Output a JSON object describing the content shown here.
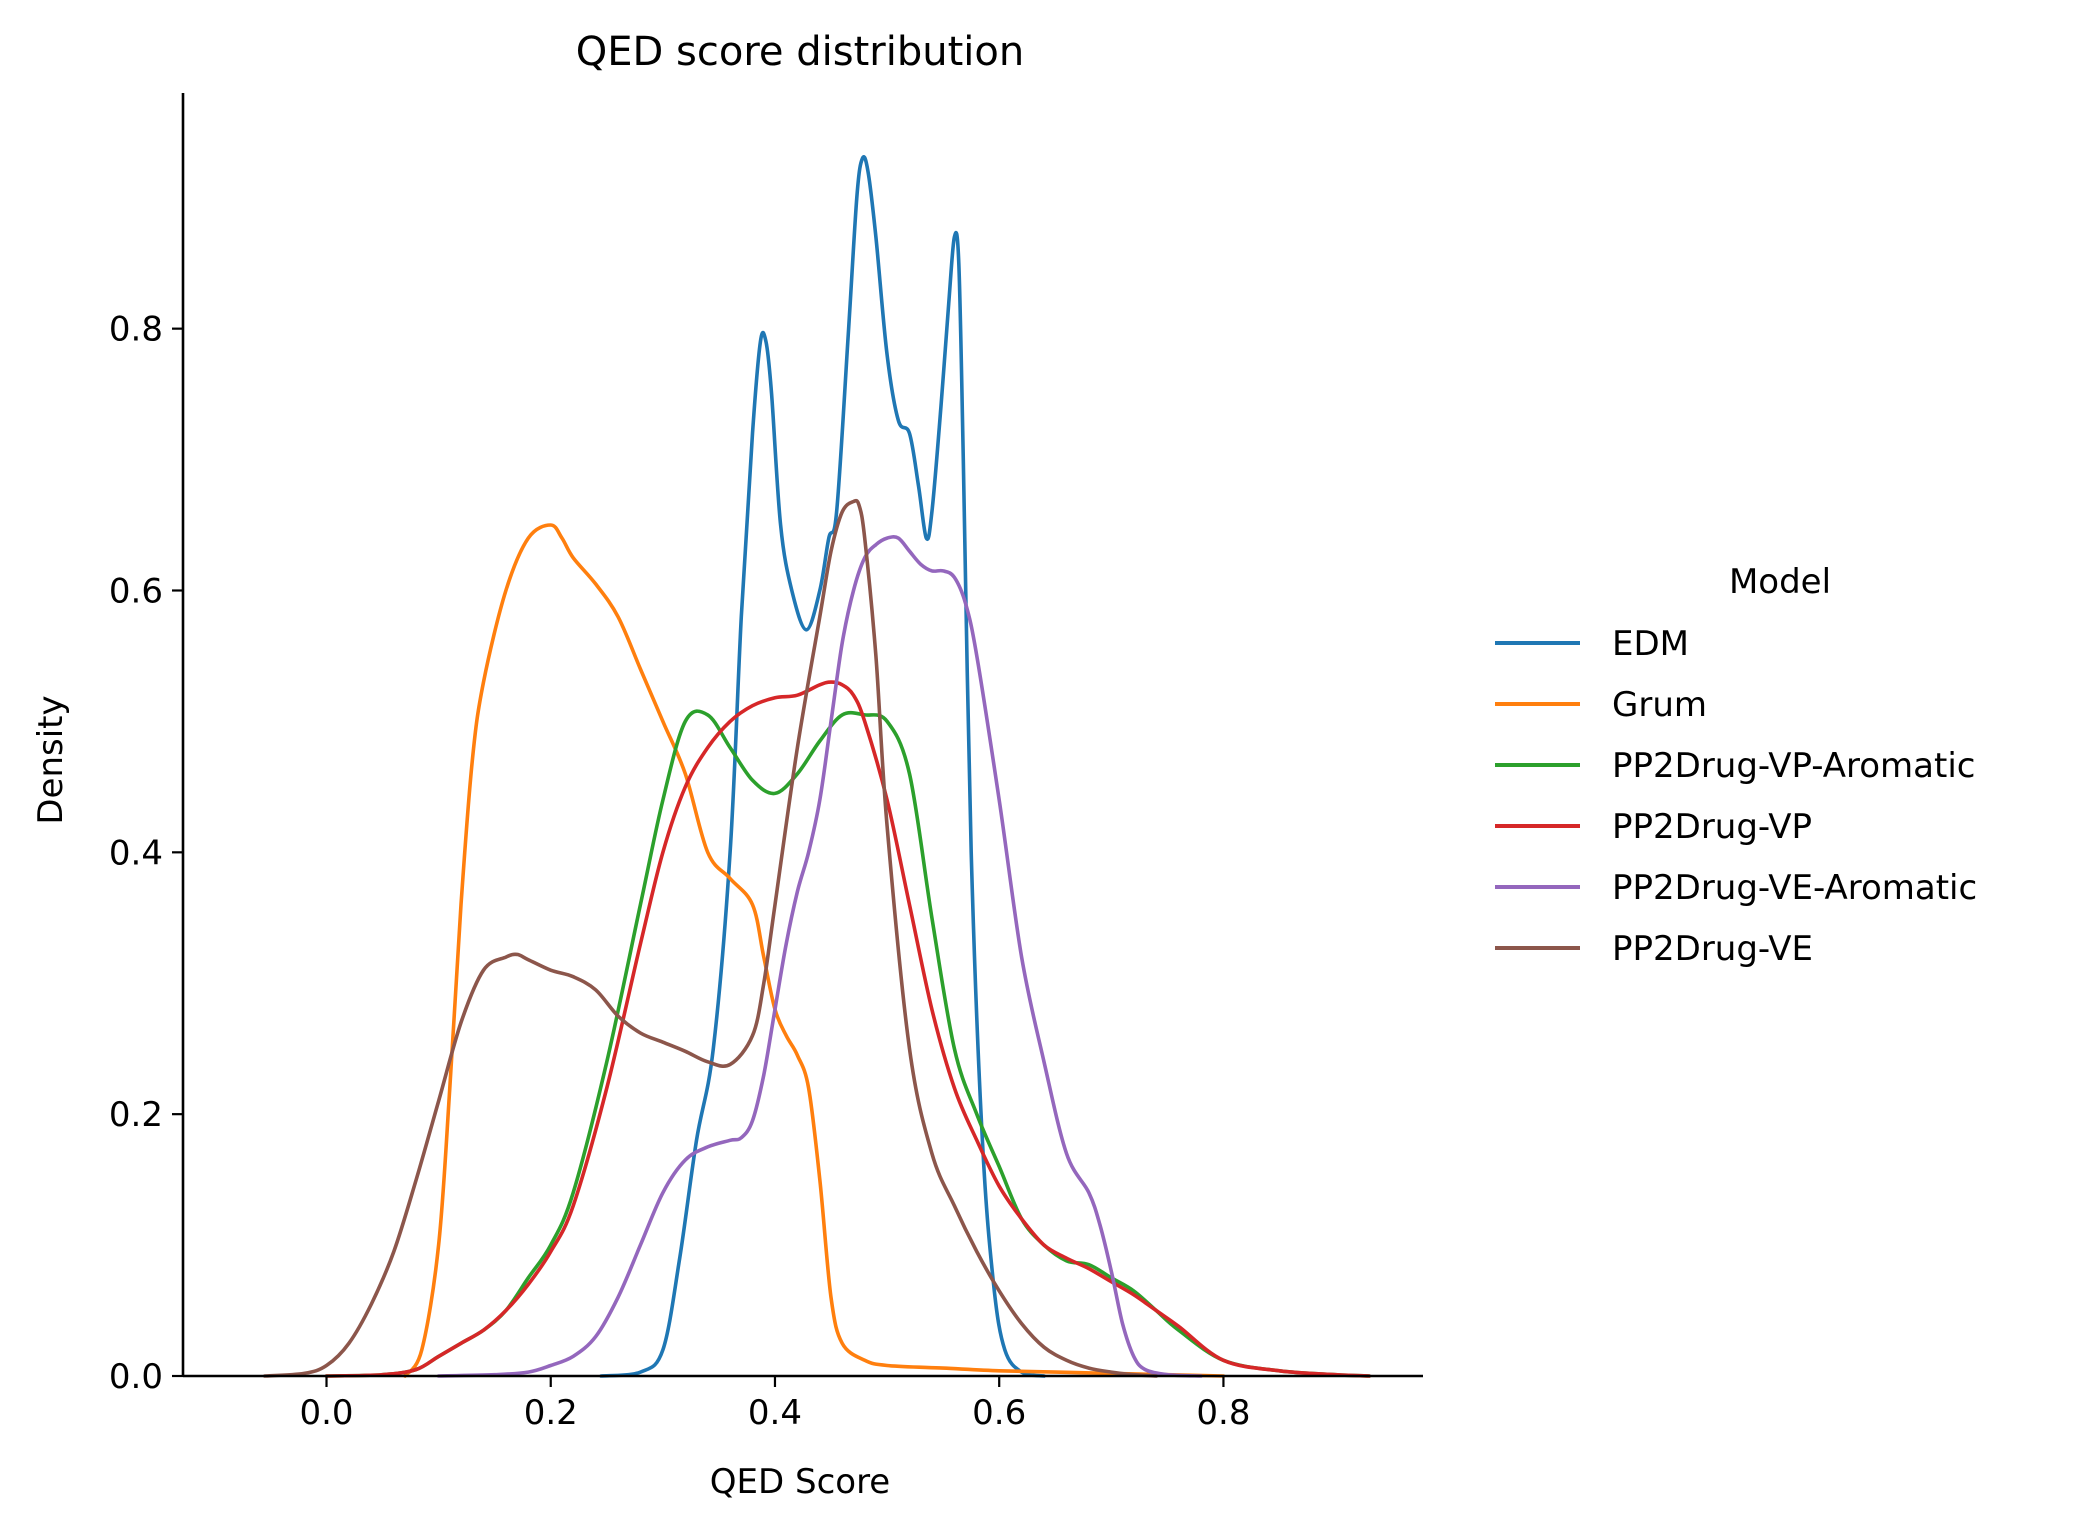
{
  "chart_data": {
    "type": "line",
    "title": "QED score distribution",
    "xlabel": "QED Score",
    "ylabel": "Density",
    "xlim": [
      -0.128,
      0.978
    ],
    "ylim": [
      0,
      0.98
    ],
    "xticks": [
      0.0,
      0.2,
      0.4,
      0.6,
      0.8
    ],
    "xtick_labels": [
      "0.0",
      "0.2",
      "0.4",
      "0.6",
      "0.8"
    ],
    "yticks": [
      0.0,
      0.2,
      0.4,
      0.6,
      0.8
    ],
    "ytick_labels": [
      "0.0",
      "0.2",
      "0.4",
      "0.6",
      "0.8"
    ],
    "grid": false,
    "legend": {
      "title": "Model",
      "placement": "outside-right"
    },
    "series": [
      {
        "name": "EDM",
        "color": "#1f77b4",
        "x": [
          0.245,
          0.28,
          0.3,
          0.315,
          0.33,
          0.345,
          0.36,
          0.37,
          0.38,
          0.387,
          0.392,
          0.397,
          0.405,
          0.415,
          0.428,
          0.44,
          0.448,
          0.455,
          0.465,
          0.473,
          0.478,
          0.483,
          0.49,
          0.5,
          0.51,
          0.52,
          0.528,
          0.535,
          0.54,
          0.548,
          0.555,
          0.56,
          0.564,
          0.568,
          0.575,
          0.585,
          0.595,
          0.605,
          0.62,
          0.64
        ],
        "y": [
          0.0,
          0.003,
          0.02,
          0.09,
          0.18,
          0.25,
          0.4,
          0.58,
          0.72,
          0.79,
          0.79,
          0.75,
          0.65,
          0.6,
          0.57,
          0.6,
          0.64,
          0.66,
          0.79,
          0.9,
          0.93,
          0.92,
          0.87,
          0.78,
          0.73,
          0.72,
          0.68,
          0.64,
          0.66,
          0.74,
          0.82,
          0.87,
          0.85,
          0.7,
          0.4,
          0.18,
          0.07,
          0.02,
          0.003,
          0.0
        ]
      },
      {
        "name": "Grum",
        "color": "#ff7f0e",
        "x": [
          0.07,
          0.085,
          0.1,
          0.11,
          0.12,
          0.13,
          0.14,
          0.16,
          0.18,
          0.2,
          0.21,
          0.22,
          0.24,
          0.26,
          0.28,
          0.3,
          0.32,
          0.34,
          0.36,
          0.38,
          0.39,
          0.4,
          0.41,
          0.42,
          0.43,
          0.44,
          0.45,
          0.46,
          0.48,
          0.5,
          0.55,
          0.6,
          0.65,
          0.7,
          0.75,
          0.8
        ],
        "y": [
          0.0,
          0.02,
          0.1,
          0.22,
          0.36,
          0.47,
          0.53,
          0.6,
          0.64,
          0.65,
          0.64,
          0.625,
          0.605,
          0.58,
          0.54,
          0.5,
          0.46,
          0.4,
          0.38,
          0.36,
          0.32,
          0.28,
          0.26,
          0.245,
          0.22,
          0.15,
          0.06,
          0.025,
          0.012,
          0.008,
          0.006,
          0.004,
          0.003,
          0.002,
          0.001,
          0.0
        ]
      },
      {
        "name": "PP2Drug-VP-Aromatic",
        "color": "#2ca02c",
        "x": [
          0.0,
          0.05,
          0.08,
          0.1,
          0.12,
          0.14,
          0.16,
          0.18,
          0.2,
          0.22,
          0.25,
          0.28,
          0.3,
          0.32,
          0.34,
          0.36,
          0.38,
          0.4,
          0.42,
          0.44,
          0.46,
          0.48,
          0.5,
          0.52,
          0.54,
          0.56,
          0.58,
          0.6,
          0.62,
          0.64,
          0.66,
          0.68,
          0.7,
          0.72,
          0.74,
          0.76,
          0.8,
          0.85,
          0.9,
          0.93
        ],
        "y": [
          0.0,
          0.001,
          0.005,
          0.015,
          0.025,
          0.035,
          0.05,
          0.075,
          0.1,
          0.14,
          0.24,
          0.36,
          0.44,
          0.5,
          0.505,
          0.48,
          0.455,
          0.445,
          0.46,
          0.485,
          0.505,
          0.505,
          0.5,
          0.46,
          0.35,
          0.25,
          0.2,
          0.16,
          0.12,
          0.1,
          0.088,
          0.085,
          0.075,
          0.065,
          0.05,
          0.035,
          0.012,
          0.004,
          0.001,
          0.0
        ]
      },
      {
        "name": "PP2Drug-VP",
        "color": "#d62728",
        "x": [
          0.0,
          0.05,
          0.08,
          0.1,
          0.12,
          0.14,
          0.16,
          0.18,
          0.2,
          0.22,
          0.25,
          0.28,
          0.3,
          0.32,
          0.34,
          0.36,
          0.38,
          0.4,
          0.42,
          0.44,
          0.45,
          0.46,
          0.47,
          0.48,
          0.5,
          0.52,
          0.54,
          0.56,
          0.58,
          0.6,
          0.62,
          0.64,
          0.66,
          0.68,
          0.7,
          0.72,
          0.74,
          0.76,
          0.8,
          0.85,
          0.9,
          0.93
        ],
        "y": [
          0.0,
          0.001,
          0.005,
          0.015,
          0.025,
          0.035,
          0.05,
          0.07,
          0.095,
          0.13,
          0.22,
          0.33,
          0.4,
          0.45,
          0.48,
          0.5,
          0.512,
          0.518,
          0.52,
          0.528,
          0.53,
          0.528,
          0.52,
          0.5,
          0.44,
          0.36,
          0.28,
          0.22,
          0.18,
          0.145,
          0.12,
          0.1,
          0.09,
          0.082,
          0.072,
          0.062,
          0.05,
          0.038,
          0.012,
          0.004,
          0.001,
          0.0
        ]
      },
      {
        "name": "PP2Drug-VE-Aromatic",
        "color": "#9467bd",
        "x": [
          0.1,
          0.15,
          0.18,
          0.2,
          0.22,
          0.24,
          0.26,
          0.28,
          0.3,
          0.32,
          0.34,
          0.36,
          0.37,
          0.38,
          0.39,
          0.4,
          0.41,
          0.42,
          0.43,
          0.44,
          0.45,
          0.46,
          0.47,
          0.48,
          0.49,
          0.5,
          0.51,
          0.52,
          0.53,
          0.54,
          0.55,
          0.56,
          0.57,
          0.58,
          0.6,
          0.62,
          0.64,
          0.66,
          0.68,
          0.69,
          0.7,
          0.71,
          0.72,
          0.73,
          0.75,
          0.78
        ],
        "y": [
          0.0,
          0.001,
          0.003,
          0.008,
          0.015,
          0.03,
          0.06,
          0.1,
          0.14,
          0.165,
          0.175,
          0.18,
          0.182,
          0.195,
          0.23,
          0.28,
          0.33,
          0.37,
          0.4,
          0.44,
          0.5,
          0.56,
          0.6,
          0.625,
          0.635,
          0.64,
          0.64,
          0.63,
          0.62,
          0.615,
          0.615,
          0.61,
          0.59,
          0.55,
          0.44,
          0.32,
          0.24,
          0.17,
          0.14,
          0.115,
          0.08,
          0.04,
          0.015,
          0.005,
          0.001,
          0.0
        ]
      },
      {
        "name": "PP2Drug-VE",
        "color": "#8c564b",
        "x": [
          -0.055,
          -0.02,
          0.0,
          0.02,
          0.04,
          0.06,
          0.08,
          0.1,
          0.12,
          0.14,
          0.16,
          0.17,
          0.18,
          0.2,
          0.22,
          0.24,
          0.26,
          0.28,
          0.3,
          0.32,
          0.34,
          0.36,
          0.38,
          0.39,
          0.4,
          0.42,
          0.44,
          0.45,
          0.46,
          0.47,
          0.475,
          0.48,
          0.49,
          0.5,
          0.52,
          0.54,
          0.56,
          0.58,
          0.6,
          0.62,
          0.64,
          0.66,
          0.68,
          0.7,
          0.72,
          0.74
        ],
        "y": [
          0.0,
          0.002,
          0.008,
          0.025,
          0.055,
          0.095,
          0.15,
          0.21,
          0.27,
          0.31,
          0.32,
          0.322,
          0.318,
          0.31,
          0.305,
          0.295,
          0.275,
          0.262,
          0.255,
          0.248,
          0.24,
          0.238,
          0.26,
          0.3,
          0.36,
          0.48,
          0.58,
          0.63,
          0.66,
          0.668,
          0.665,
          0.64,
          0.55,
          0.42,
          0.25,
          0.17,
          0.13,
          0.095,
          0.065,
          0.04,
          0.022,
          0.012,
          0.006,
          0.003,
          0.001,
          0.0
        ]
      }
    ]
  }
}
